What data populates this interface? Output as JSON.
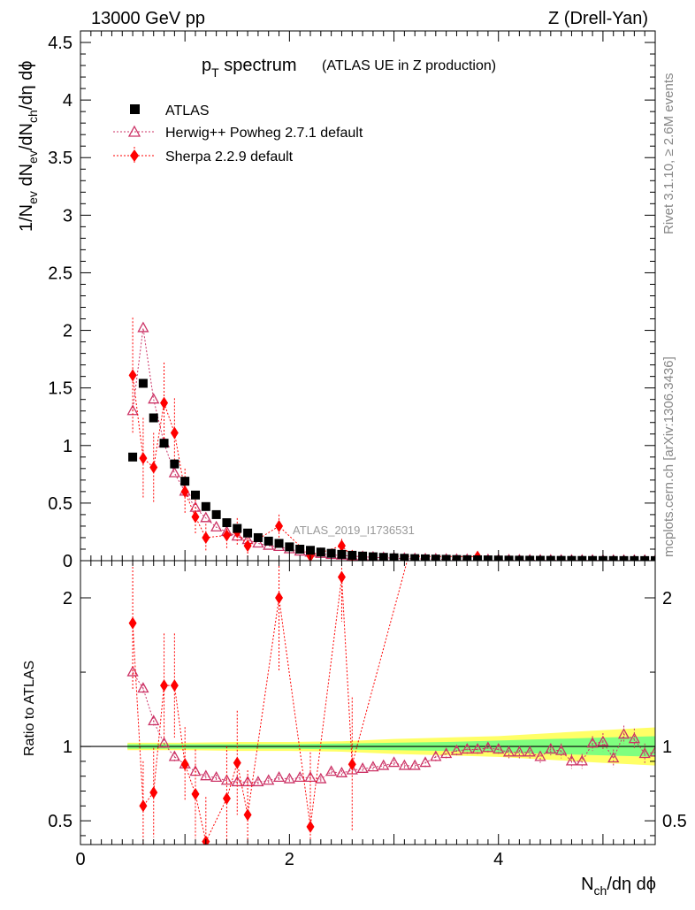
{
  "header": {
    "left": "13000 GeV pp",
    "right": "Z (Drell-Yan)"
  },
  "side_labels": {
    "top": "Rivet 3.1.10, ≥ 2.6M events",
    "bottom": "mcplots.cern.ch [arXiv:1306.3436]"
  },
  "chart_data": {
    "type": "scatter",
    "title_main": "p",
    "title_sub": "T",
    "title_word": " spectrum",
    "subtitle": "(ATLAS UE in Z production)",
    "watermark": "ATLAS_2019_I1736531",
    "xlabel": {
      "n": "N",
      "sub": "ch",
      "rest": "/dη dϕ"
    },
    "ylabel": "1/Nₑᵥ dNₕ/dη/dϕ",
    "ratio_ylabel": "Ratio to ATLAS",
    "xlim": [
      0,
      5.5
    ],
    "ylim_main": [
      0,
      4.6
    ],
    "ylim_ratio": [
      0.34,
      2.25
    ],
    "x_ticks": [
      "0",
      "2",
      "4"
    ],
    "y_ticks_main": [
      "0",
      "0.5",
      "1",
      "1.5",
      "2",
      "2.5",
      "3",
      "3.5",
      "4",
      "4.5"
    ],
    "y_ticks_ratio": [
      "0.5",
      "1",
      "2"
    ],
    "colors": {
      "data": "#000000",
      "herwig": "#cc3366",
      "sherpa": "#ff0000",
      "band_inner": "#7fff7f",
      "band_outer": "#ffff66"
    },
    "legend": [
      {
        "name": "ATLAS"
      },
      {
        "name": "Herwig++ Powheg 2.7.1 default"
      },
      {
        "name": "Sherpa 2.2.9 default"
      }
    ],
    "atlas": {
      "x": [
        0.5,
        0.6,
        0.7,
        0.8,
        0.9,
        1.0,
        1.1,
        1.2,
        1.3,
        1.4,
        1.5,
        1.6,
        1.7,
        1.8,
        1.9,
        2.0,
        2.1,
        2.2,
        2.3,
        2.4,
        2.5,
        2.6,
        2.7,
        2.8,
        2.9,
        3.0,
        3.1,
        3.2,
        3.3,
        3.4,
        3.5,
        3.6,
        3.7,
        3.8,
        3.9,
        4.0,
        4.1,
        4.2,
        4.3,
        4.4,
        4.5,
        4.6,
        4.7,
        4.8,
        4.9,
        5.0,
        5.1,
        5.2,
        5.3,
        5.4,
        5.5
      ],
      "y": [
        0.9,
        1.54,
        1.24,
        1.02,
        0.84,
        0.69,
        0.57,
        0.47,
        0.4,
        0.33,
        0.28,
        0.24,
        0.2,
        0.17,
        0.15,
        0.12,
        0.1,
        0.09,
        0.075,
        0.064,
        0.055,
        0.047,
        0.04,
        0.034,
        0.029,
        0.025,
        0.021,
        0.018,
        0.016,
        0.014,
        0.012,
        0.01,
        0.009,
        0.008,
        0.007,
        0.006,
        0.005,
        0.0045,
        0.004,
        0.0035,
        0.003,
        0.0026,
        0.0023,
        0.002,
        0.0018,
        0.0016,
        0.0014,
        0.0012,
        0.0011,
        0.001,
        0.0009
      ]
    },
    "herwig": {
      "x": [
        0.5,
        0.6,
        0.7,
        0.8,
        0.9,
        1.0,
        1.1,
        1.2,
        1.3,
        1.4,
        1.5,
        1.6,
        1.7,
        1.8,
        1.9,
        2.0,
        2.1,
        2.2,
        2.3,
        2.4,
        2.5,
        2.6,
        2.7,
        2.8,
        2.9,
        3.0,
        3.1,
        3.2,
        3.3,
        3.4,
        3.5,
        3.6,
        3.7,
        3.8,
        3.9,
        4.0,
        4.1,
        4.2,
        4.3,
        4.4,
        4.5,
        4.6,
        4.7,
        4.8,
        4.9,
        5.0,
        5.1,
        5.2,
        5.3,
        5.4,
        5.5
      ],
      "y": [
        1.3,
        2.02,
        1.4,
        1.02,
        0.76,
        0.6,
        0.46,
        0.37,
        0.29,
        0.25,
        0.21,
        0.18,
        0.15,
        0.13,
        0.12,
        0.1,
        0.08,
        0.07,
        0.06,
        0.05,
        0.045,
        0.04,
        0.034,
        0.029,
        0.025,
        0.022,
        0.018,
        0.016,
        0.014,
        0.013,
        0.011,
        0.0095,
        0.0088,
        0.0078,
        0.0068,
        0.0058,
        0.0048,
        0.0043,
        0.0038,
        0.0032,
        0.0028,
        0.0023,
        0.002,
        0.0019,
        0.0017,
        0.0015,
        0.0014,
        0.0012,
        0.001,
        0.001,
        0.0009
      ],
      "ratio": [
        1.5,
        1.39,
        1.17,
        1.02,
        0.93,
        0.88,
        0.83,
        0.8,
        0.79,
        0.77,
        0.76,
        0.76,
        0.76,
        0.77,
        0.79,
        0.78,
        0.79,
        0.79,
        0.78,
        0.83,
        0.82,
        0.84,
        0.85,
        0.86,
        0.87,
        0.89,
        0.87,
        0.87,
        0.89,
        0.93,
        0.95,
        0.97,
        0.98,
        0.98,
        0.99,
        0.98,
        0.96,
        0.96,
        0.96,
        0.93,
        0.98,
        0.97,
        0.9,
        0.9,
        1.02,
        1.03,
        0.92,
        1.08,
        1.05,
        0.95,
        0.96
      ],
      "ratio_err": [
        0.04,
        0.03,
        0.03,
        0.03,
        0.03,
        0.03,
        0.03,
        0.02,
        0.02,
        0.02,
        0.02,
        0.02,
        0.02,
        0.02,
        0.02,
        0.02,
        0.02,
        0.02,
        0.02,
        0.02,
        0.02,
        0.02,
        0.02,
        0.02,
        0.02,
        0.02,
        0.02,
        0.02,
        0.03,
        0.03,
        0.03,
        0.03,
        0.03,
        0.03,
        0.03,
        0.03,
        0.04,
        0.04,
        0.04,
        0.04,
        0.04,
        0.05,
        0.05,
        0.05,
        0.05,
        0.06,
        0.06,
        0.06,
        0.07,
        0.07,
        0.07
      ]
    },
    "sherpa": {
      "x": [
        0.5,
        0.6,
        0.7,
        0.8,
        0.9,
        1.0,
        1.1,
        1.2,
        1.4,
        1.5,
        1.6,
        1.9,
        2.2,
        2.5,
        2.6,
        3.8
      ],
      "y": [
        1.61,
        0.89,
        0.81,
        1.37,
        1.11,
        0.6,
        0.38,
        0.2,
        0.22,
        0.25,
        0.13,
        0.3,
        0.04,
        0.13,
        0.04,
        0.035
      ],
      "err": [
        0.5,
        0.35,
        0.3,
        0.35,
        0.3,
        0.2,
        0.15,
        0.12,
        0.12,
        0.12,
        0.1,
        0.1,
        0.05,
        0.06,
        0.04,
        0.02
      ],
      "ratio": [
        1.83,
        0.6,
        0.69,
        1.41,
        1.41,
        0.88,
        0.68,
        0.36,
        0.65,
        0.89,
        0.54,
        2.0,
        0.46,
        2.14,
        0.88,
        4.0
      ],
      "ratio_err": [
        0.45,
        0.3,
        0.3,
        0.35,
        0.35,
        0.25,
        0.3,
        0.3,
        0.35,
        0.35,
        0.3,
        0.5,
        0.5,
        0.3,
        0.45,
        0.4
      ]
    },
    "band": {
      "x": [
        0.45,
        1.0,
        1.5,
        2.0,
        2.5,
        3.0,
        3.5,
        4.0,
        4.5,
        5.0,
        5.55
      ],
      "inner": [
        0.015,
        0.015,
        0.015,
        0.015,
        0.02,
        0.025,
        0.03,
        0.04,
        0.05,
        0.06,
        0.07
      ],
      "outer": [
        0.025,
        0.025,
        0.03,
        0.03,
        0.035,
        0.05,
        0.06,
        0.07,
        0.09,
        0.11,
        0.13
      ]
    }
  }
}
